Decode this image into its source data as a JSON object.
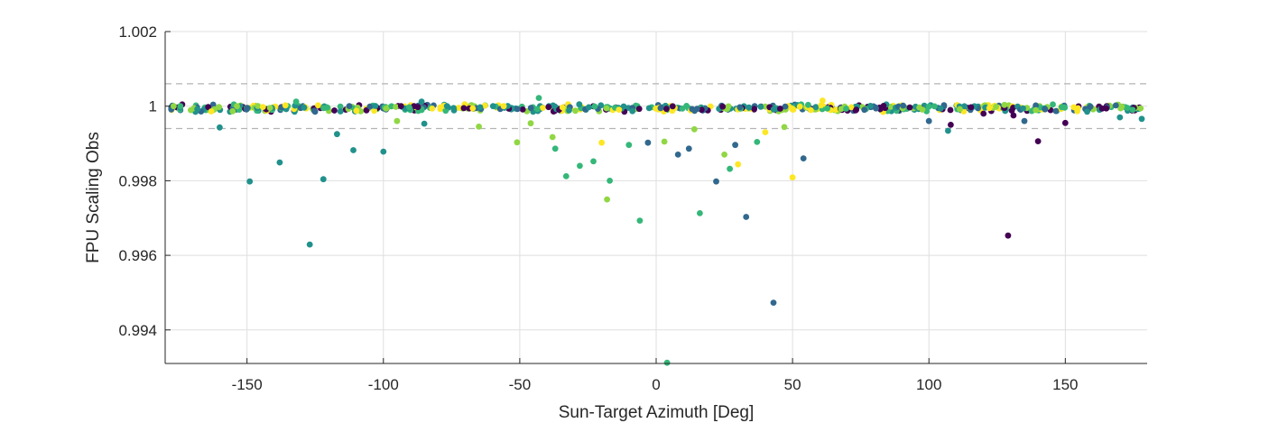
{
  "chart_data": {
    "type": "scatter",
    "title": "",
    "xlabel": "Sun-Target Azimuth [Deg]",
    "ylabel": "FPU Scaling Obs",
    "xlim": [
      -180,
      180
    ],
    "ylim": [
      0.9931,
      1.002
    ],
    "xticks": [
      -150,
      -100,
      -50,
      0,
      50,
      100,
      150
    ],
    "xtick_labels": [
      "-150",
      "-100",
      "-50",
      "0",
      "50",
      "100",
      "150"
    ],
    "yticks": [
      0.994,
      0.996,
      0.998,
      1.0,
      1.002
    ],
    "ytick_labels": [
      "0.994",
      "0.996",
      "0.998",
      "1",
      "1.002"
    ],
    "grid": true,
    "reference_lines": [
      1.0006,
      0.9994
    ],
    "reference_line_style": "dashed",
    "colormap": "viridis",
    "colors": [
      "#440154",
      "#31688e",
      "#21918c",
      "#35b779",
      "#90d743",
      "#fde725"
    ],
    "points": [
      {
        "x": -149,
        "y": 0.99798,
        "c": 2
      },
      {
        "x": -138,
        "y": 0.99849,
        "c": 2
      },
      {
        "x": -127,
        "y": 0.99629,
        "c": 2
      },
      {
        "x": -122,
        "y": 0.99804,
        "c": 2
      },
      {
        "x": -117,
        "y": 0.99925,
        "c": 2
      },
      {
        "x": -111,
        "y": 0.99882,
        "c": 2
      },
      {
        "x": -100,
        "y": 0.99878,
        "c": 2
      },
      {
        "x": -160,
        "y": 0.99943,
        "c": 2
      },
      {
        "x": -85,
        "y": 0.99953,
        "c": 2
      },
      {
        "x": -51,
        "y": 0.99903,
        "c": 4
      },
      {
        "x": -46,
        "y": 0.99954,
        "c": 4
      },
      {
        "x": -38,
        "y": 0.99917,
        "c": 4
      },
      {
        "x": -37,
        "y": 0.99886,
        "c": 3
      },
      {
        "x": -33,
        "y": 0.99812,
        "c": 3
      },
      {
        "x": -28,
        "y": 0.9984,
        "c": 3
      },
      {
        "x": -23,
        "y": 0.99852,
        "c": 3
      },
      {
        "x": -20,
        "y": 0.99902,
        "c": 5
      },
      {
        "x": -18,
        "y": 0.9975,
        "c": 4
      },
      {
        "x": -17,
        "y": 0.998,
        "c": 3
      },
      {
        "x": -10,
        "y": 0.99896,
        "c": 3
      },
      {
        "x": -6,
        "y": 0.99693,
        "c": 3
      },
      {
        "x": -3,
        "y": 0.99902,
        "c": 1
      },
      {
        "x": 3,
        "y": 0.99905,
        "c": 4
      },
      {
        "x": 4,
        "y": 0.99312,
        "c": 3
      },
      {
        "x": 8,
        "y": 0.9987,
        "c": 1
      },
      {
        "x": 12,
        "y": 0.99886,
        "c": 1
      },
      {
        "x": 14,
        "y": 0.99938,
        "c": 4
      },
      {
        "x": 16,
        "y": 0.99713,
        "c": 3
      },
      {
        "x": 22,
        "y": 0.99798,
        "c": 1
      },
      {
        "x": 25,
        "y": 0.9987,
        "c": 4
      },
      {
        "x": 27,
        "y": 0.99832,
        "c": 3
      },
      {
        "x": 29,
        "y": 0.99896,
        "c": 1
      },
      {
        "x": 30,
        "y": 0.99844,
        "c": 5
      },
      {
        "x": 33,
        "y": 0.99703,
        "c": 1
      },
      {
        "x": 37,
        "y": 0.99904,
        "c": 3
      },
      {
        "x": 40,
        "y": 0.9993,
        "c": 5
      },
      {
        "x": 43,
        "y": 0.99473,
        "c": 1
      },
      {
        "x": 47,
        "y": 0.99944,
        "c": 4
      },
      {
        "x": 50,
        "y": 0.99809,
        "c": 5
      },
      {
        "x": 54,
        "y": 0.9986,
        "c": 1
      },
      {
        "x": 61,
        "y": 1.00015,
        "c": 5
      },
      {
        "x": 107,
        "y": 0.99934,
        "c": 2
      },
      {
        "x": 108,
        "y": 0.9995,
        "c": 0
      },
      {
        "x": 129,
        "y": 0.99653,
        "c": 0
      },
      {
        "x": 131,
        "y": 0.99975,
        "c": 0
      },
      {
        "x": 140,
        "y": 0.99906,
        "c": 0
      },
      {
        "x": 150,
        "y": 0.99955,
        "c": 0
      },
      {
        "x": 170,
        "y": 0.9997,
        "c": 2
      },
      {
        "x": 178,
        "y": 0.99966,
        "c": 2
      },
      {
        "x": -43,
        "y": 1.00022,
        "c": 3
      },
      {
        "x": -132,
        "y": 1.00012,
        "c": 3
      },
      {
        "x": -86,
        "y": 1.00012,
        "c": 2
      },
      {
        "x": 120,
        "y": 0.9998,
        "c": 0
      },
      {
        "x": 100,
        "y": 0.9996,
        "c": 1
      },
      {
        "x": 135,
        "y": 0.9996,
        "c": 1
      },
      {
        "x": 158,
        "y": 0.99985,
        "c": 2
      },
      {
        "x": -95,
        "y": 0.9996,
        "c": 4
      },
      {
        "x": -65,
        "y": 0.99945,
        "c": 4
      }
    ],
    "band": {
      "center": 0.99995,
      "spread": 0.00011,
      "count": 620,
      "seed": 7
    }
  }
}
